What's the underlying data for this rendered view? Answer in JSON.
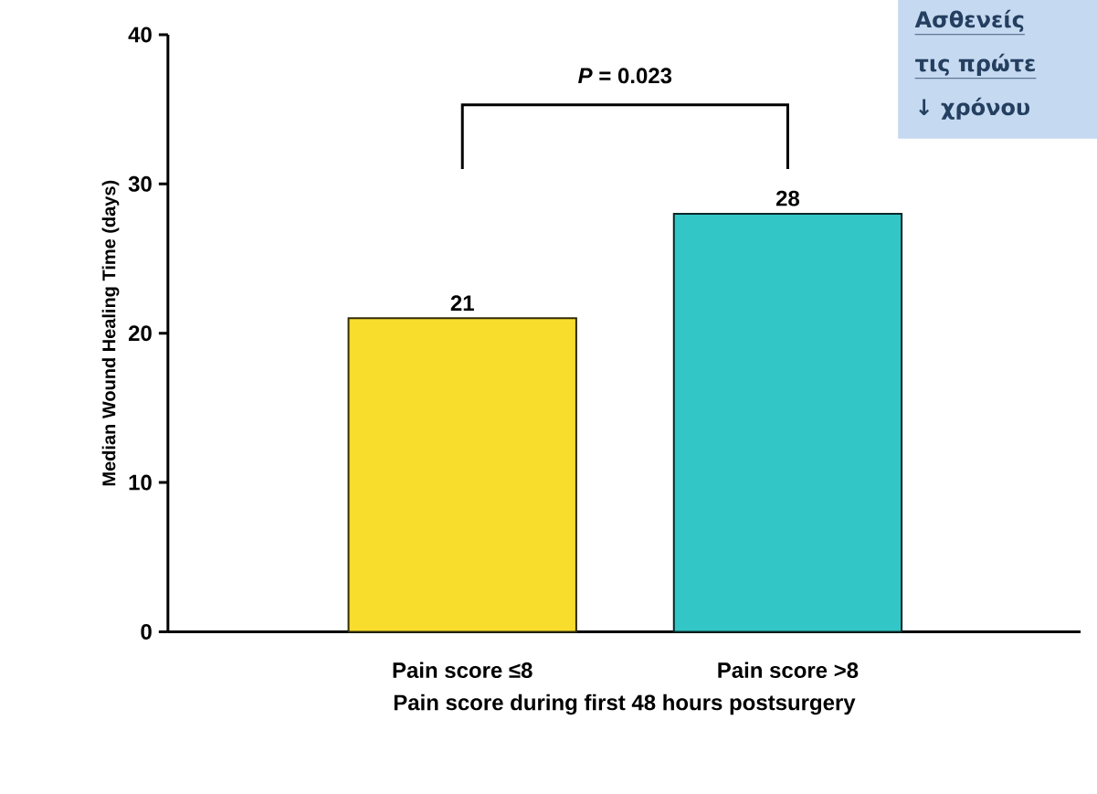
{
  "chart_data": {
    "type": "bar",
    "ylabel": "Median Wound Healing Time (days)",
    "xlabel": "Pain score during first 48 hours postsurgery",
    "categories": [
      "Pain score ≤8",
      "Pain score >8"
    ],
    "values": [
      21,
      28
    ],
    "colors": [
      "#f9dd2c",
      "#33c6c6"
    ],
    "ylim": [
      0,
      40
    ],
    "yticks": [
      0,
      10,
      20,
      30,
      40
    ],
    "data_labels": true,
    "annotations": [
      "*P* = 0.023",
      "Ασθενείς",
      "τις πρώτε",
      "↓ χρόνου"
    ]
  }
}
